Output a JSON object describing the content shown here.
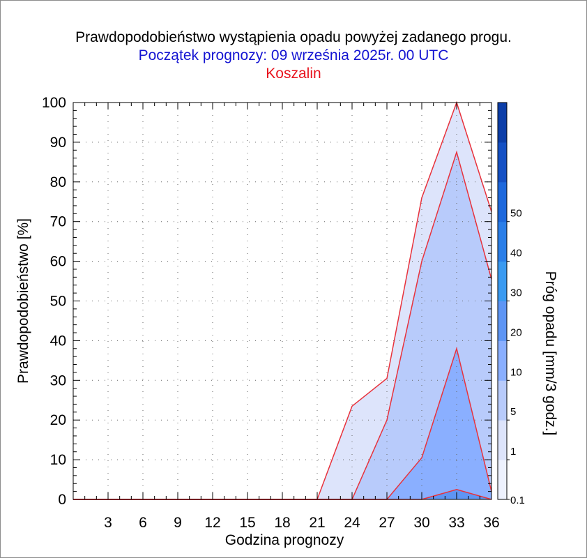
{
  "chart_data": {
    "type": "area",
    "title": "Prawdopodobieństwo wystąpienia opadu powyżej zadanego progu.",
    "subtitle": "Początek prognozy: 09 września 2025r. 00 UTC",
    "location": "Koszalin",
    "xlabel": "Godzina prognozy",
    "ylabel": "Prawdopodobieństwo [%]",
    "colorbar_label": "Próg opadu [mm/3 godz.]",
    "xlim": [
      0,
      36
    ],
    "ylim": [
      0,
      100
    ],
    "x_ticks": [
      3,
      6,
      9,
      12,
      15,
      18,
      21,
      24,
      27,
      30,
      33,
      36
    ],
    "y_ticks": [
      0,
      10,
      20,
      30,
      40,
      50,
      60,
      70,
      80,
      90,
      100
    ],
    "grid": true,
    "x": [
      0,
      3,
      6,
      9,
      12,
      15,
      18,
      21,
      24,
      27,
      30,
      33,
      36
    ],
    "series": [
      {
        "name": "0.1",
        "color": "#dde4fb",
        "values": [
          0,
          0,
          0,
          0,
          0,
          0,
          0,
          0,
          23.5,
          30.5,
          76,
          100,
          72.5
        ]
      },
      {
        "name": "1",
        "color": "#b8cbfb",
        "values": [
          0,
          0,
          0,
          0,
          0,
          0,
          0,
          0,
          0,
          20,
          60,
          87.5,
          55.5
        ]
      },
      {
        "name": "5",
        "color": "#8aafff",
        "values": [
          0,
          0,
          0,
          0,
          0,
          0,
          0,
          0,
          0,
          0,
          10.5,
          38,
          2
        ]
      },
      {
        "name": "10",
        "color": "#5e95f4",
        "values": [
          0,
          0,
          0,
          0,
          0,
          0,
          0,
          0,
          0,
          0,
          0,
          2.5,
          0
        ]
      }
    ],
    "colorbar": {
      "labels": [
        "0.1",
        "1",
        "5",
        "10",
        "20",
        "30",
        "40",
        "50"
      ],
      "colors": [
        "#eef2fe",
        "#dde4fb",
        "#b8cbfb",
        "#8aafff",
        "#5e95f4",
        "#3a9af0",
        "#2a7ee8",
        "#1d68dc",
        "#1450c4",
        "#0c3ea8"
      ]
    },
    "colors": {
      "title": "#000000",
      "subtitle": "#1414d2",
      "location": "#e8141e",
      "outline": "#e8323c"
    }
  }
}
